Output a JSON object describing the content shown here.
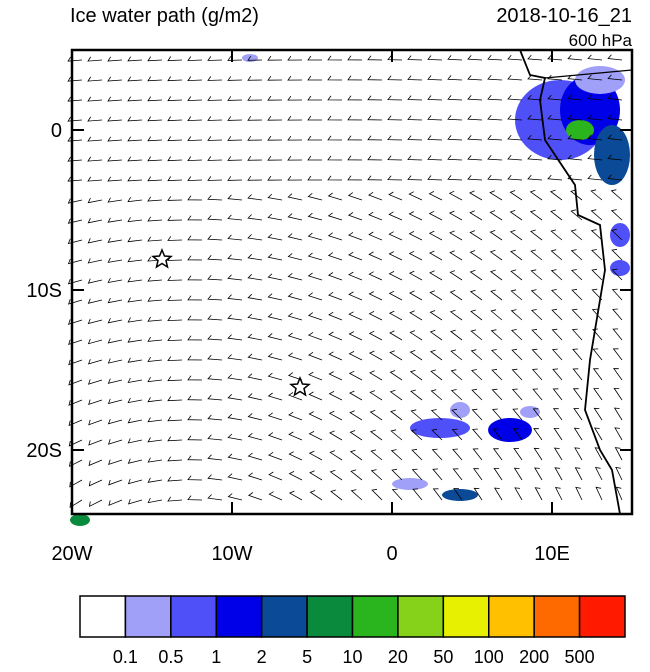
{
  "title": "Ice water path (g/m2)",
  "date": "2018-10-16_21",
  "level": "600 hPa",
  "lonlim": [
    -20,
    15
  ],
  "latlim": [
    -24,
    5
  ],
  "lat_ticks": [
    {
      "value": 0,
      "label": "0"
    },
    {
      "value": -10,
      "label": "10S"
    },
    {
      "value": -20,
      "label": "20S"
    }
  ],
  "lon_ticks": [
    {
      "value": -20,
      "label": "20W"
    },
    {
      "value": -10,
      "label": "10W"
    },
    {
      "value": 0,
      "label": "0"
    },
    {
      "value": 10,
      "label": "10E"
    }
  ],
  "colorbar": {
    "labels": [
      "0.1",
      "0.5",
      "1",
      "2",
      "5",
      "10",
      "20",
      "50",
      "100",
      "200",
      "500"
    ],
    "colors": [
      "#ffffff",
      "#a0a0f8",
      "#5050f8",
      "#0000e8",
      "#0a4a96",
      "#0a8a3c",
      "#2ab41e",
      "#86d21a",
      "#e6f000",
      "#ffc000",
      "#ff6a00",
      "#ff1a00"
    ]
  }
}
